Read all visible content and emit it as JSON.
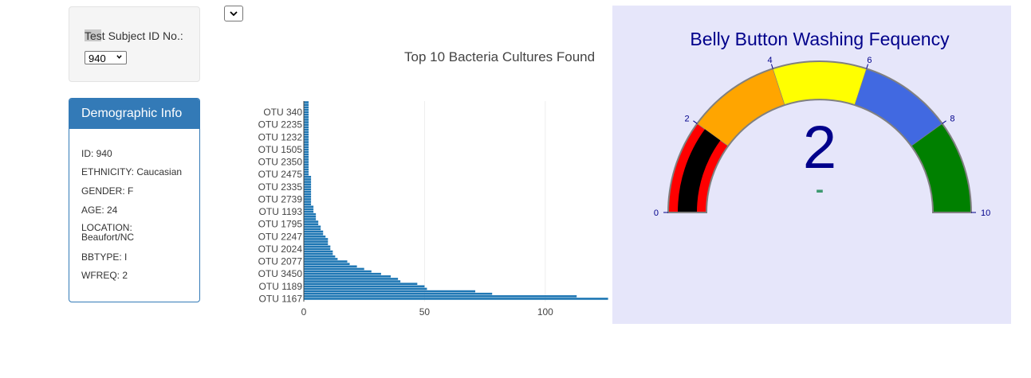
{
  "selector": {
    "label": "Test Subject ID No.:",
    "selected": "940"
  },
  "demographic": {
    "title": "Demographic Info",
    "lines": [
      "ID: 940",
      "ETHNICITY: Caucasian",
      "GENDER: F",
      "AGE: 24",
      "LOCATION: Beaufort/NC",
      "BBTYPE: I",
      "WFREQ: 2"
    ]
  },
  "chart_data": [
    {
      "type": "bar",
      "orientation": "h",
      "title": "Top 10 Bacteria Cultures Found",
      "color": "#1f77b4",
      "grid": true,
      "categories": [
        "OTU 1167",
        null,
        null,
        null,
        null,
        "OTU 1189",
        null,
        null,
        null,
        null,
        "OTU 3450",
        null,
        null,
        null,
        null,
        "OTU 2077",
        null,
        null,
        null,
        null,
        "OTU 2024",
        null,
        null,
        null,
        null,
        "OTU 2247",
        null,
        null,
        null,
        null,
        "OTU 1795",
        null,
        null,
        null,
        null,
        "OTU 1193",
        null,
        null,
        null,
        null,
        "OTU 2739",
        null,
        null,
        null,
        null,
        "OTU 2335",
        null,
        null,
        null,
        null,
        "OTU 2475",
        null,
        null,
        null,
        null,
        "OTU 2350",
        null,
        null,
        null,
        null,
        "OTU 1505",
        null,
        null,
        null,
        null,
        "OTU 1232",
        null,
        null,
        null,
        null,
        "OTU 2235",
        null,
        null,
        null,
        null,
        "OTU 340",
        null,
        null,
        null,
        null
      ],
      "values": [
        126,
        113,
        78,
        71,
        51,
        50,
        47,
        40,
        39,
        36,
        32,
        28,
        25,
        22,
        19,
        18,
        14,
        13,
        12,
        12,
        11,
        11,
        10,
        10,
        10,
        9,
        8,
        8,
        7,
        7,
        6,
        6,
        5,
        5,
        5,
        4,
        4,
        4,
        3,
        3,
        3,
        3,
        3,
        3,
        3,
        3,
        3,
        3,
        3,
        3,
        2,
        2,
        2,
        2,
        2,
        2,
        2,
        2,
        2,
        2,
        2,
        2,
        2,
        2,
        2,
        2,
        2,
        2,
        2,
        2,
        2,
        2,
        2,
        2,
        2,
        2,
        2,
        2,
        2,
        2
      ],
      "xlim": [
        0,
        140
      ],
      "xticks": [
        0,
        50,
        100
      ]
    },
    {
      "type": "gauge",
      "title": "Belly Button Washing Fequency",
      "value": 2,
      "delta_label": "-",
      "range": [
        0,
        10
      ],
      "ticks": [
        0,
        2,
        4,
        6,
        8,
        10
      ],
      "bar_color": "#000000",
      "number_color": "#00008b",
      "steps": [
        {
          "range": [
            0,
            2
          ],
          "color": "#ff0000"
        },
        {
          "range": [
            2,
            4
          ],
          "color": "#ffa500"
        },
        {
          "range": [
            4,
            6
          ],
          "color": "#ffff00"
        },
        {
          "range": [
            6,
            8
          ],
          "color": "#4169e1"
        },
        {
          "range": [
            8,
            10
          ],
          "color": "#008000"
        }
      ]
    }
  ]
}
